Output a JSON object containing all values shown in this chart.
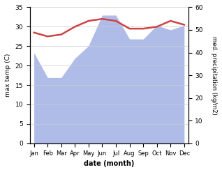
{
  "months": [
    "Jan",
    "Feb",
    "Mar",
    "Apr",
    "May",
    "Jun",
    "Jul",
    "Aug",
    "Sep",
    "Oct",
    "Nov",
    "Dec"
  ],
  "temp": [
    28.5,
    27.5,
    28.0,
    30.0,
    31.5,
    32.0,
    31.5,
    29.5,
    29.5,
    30.0,
    31.5,
    30.5
  ],
  "precip": [
    40.0,
    29.0,
    29.0,
    37.5,
    43.0,
    56.5,
    56.5,
    46.0,
    46.0,
    52.0,
    50.0,
    52.0
  ],
  "temp_color": "#cc4444",
  "precip_color": "#b0bce8",
  "ylim_temp": [
    0,
    35
  ],
  "ylim_precip": [
    0,
    60
  ],
  "ylabel_left": "max temp (C)",
  "ylabel_right": "med. precipitation (kg/m2)",
  "xlabel": "date (month)",
  "bg_color": "#ffffff",
  "grid_color": "#cccccc"
}
